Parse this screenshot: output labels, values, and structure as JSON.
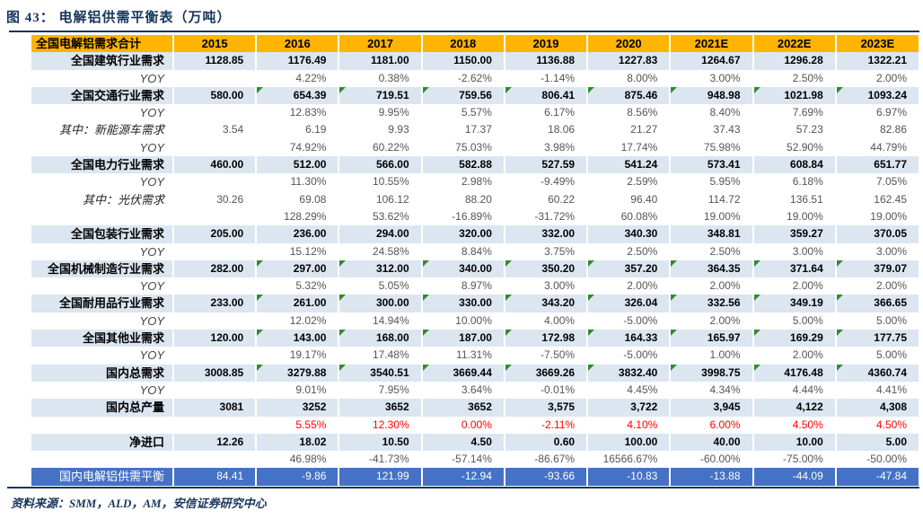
{
  "figure": {
    "title": "图 43：  电解铝供需平衡表（万吨）",
    "source_note": "资料来源：SMM，ALD，AM，安信证券研究中心"
  },
  "colors": {
    "header_bg": "#FFB400",
    "main_row_bg": "#DCE6F1",
    "balance_row_bg": "#4472C4",
    "accent_navy": "#16365C",
    "negative_red": "#FF0000",
    "flag_triangle_green": "#2E8B2E",
    "muted_text": "#555555"
  },
  "table": {
    "header": {
      "label": "全国电解铝需求合计",
      "years": [
        "2015",
        "2016",
        "2017",
        "2018",
        "2019",
        "2020",
        "2021E",
        "2022E",
        "2023E"
      ]
    },
    "rows": [
      {
        "label": "全国建筑行业需求",
        "type": "main",
        "tri": false,
        "values": [
          "1128.85",
          "1176.49",
          "1181.00",
          "1150.00",
          "1136.88",
          "1227.83",
          "1264.67",
          "1296.28",
          "1322.21"
        ]
      },
      {
        "label": "YOY",
        "type": "yoy",
        "values": [
          "",
          "4.22%",
          "0.38%",
          "-2.62%",
          "-1.14%",
          "8.00%",
          "3.00%",
          "2.50%",
          "2.00%"
        ]
      },
      {
        "label": "全国交通行业需求",
        "type": "main",
        "tri": true,
        "values": [
          "580.00",
          "654.39",
          "719.51",
          "759.56",
          "806.41",
          "875.46",
          "948.98",
          "1021.98",
          "1093.24"
        ]
      },
      {
        "label": "YOY",
        "type": "yoy",
        "values": [
          "",
          "12.83%",
          "9.95%",
          "5.57%",
          "6.17%",
          "8.56%",
          "8.40%",
          "7.69%",
          "6.97%"
        ]
      },
      {
        "label": "其中：新能源车需求",
        "type": "sub",
        "values": [
          "3.54",
          "6.19",
          "9.93",
          "17.37",
          "18.06",
          "21.27",
          "37.43",
          "57.23",
          "82.86"
        ]
      },
      {
        "label": "YOY",
        "type": "yoy",
        "values": [
          "",
          "74.92%",
          "60.22%",
          "75.03%",
          "3.98%",
          "17.74%",
          "75.98%",
          "52.90%",
          "44.79%"
        ]
      },
      {
        "label": "全国电力行业需求",
        "type": "main",
        "tri": false,
        "values": [
          "460.00",
          "512.00",
          "566.00",
          "582.88",
          "527.59",
          "541.24",
          "573.41",
          "608.84",
          "651.77"
        ]
      },
      {
        "label": "YOY",
        "type": "yoy",
        "values": [
          "",
          "11.30%",
          "10.55%",
          "2.98%",
          "-9.49%",
          "2.59%",
          "5.95%",
          "6.18%",
          "7.05%"
        ]
      },
      {
        "label": "其中：光伏需求",
        "type": "sub",
        "values": [
          "30.26",
          "69.08",
          "106.12",
          "88.20",
          "60.22",
          "96.40",
          "114.72",
          "136.51",
          "162.45"
        ]
      },
      {
        "label": "",
        "type": "yoy",
        "values": [
          "",
          "128.29%",
          "53.62%",
          "-16.89%",
          "-31.72%",
          "60.08%",
          "19.00%",
          "19.00%",
          "19.00%"
        ]
      },
      {
        "label": "全国包装行业需求",
        "type": "main",
        "tri": false,
        "values": [
          "205.00",
          "236.00",
          "294.00",
          "320.00",
          "332.00",
          "340.30",
          "348.81",
          "359.27",
          "370.05"
        ]
      },
      {
        "label": "YOY",
        "type": "yoy",
        "values": [
          "",
          "15.12%",
          "24.58%",
          "8.84%",
          "3.75%",
          "2.50%",
          "2.50%",
          "3.00%",
          "3.00%"
        ]
      },
      {
        "label": "全国机械制造行业需求",
        "type": "main",
        "tri": true,
        "values": [
          "282.00",
          "297.00",
          "312.00",
          "340.00",
          "350.20",
          "357.20",
          "364.35",
          "371.64",
          "379.07"
        ]
      },
      {
        "label": "YOY",
        "type": "yoy",
        "values": [
          "",
          "5.32%",
          "5.05%",
          "8.97%",
          "3.00%",
          "2.00%",
          "2.00%",
          "2.00%",
          "2.00%"
        ]
      },
      {
        "label": "全国耐用品行业需求",
        "type": "main",
        "tri": true,
        "values": [
          "233.00",
          "261.00",
          "300.00",
          "330.00",
          "343.20",
          "326.04",
          "332.56",
          "349.19",
          "366.65"
        ]
      },
      {
        "label": "YOY",
        "type": "yoy",
        "values": [
          "",
          "12.02%",
          "14.94%",
          "10.00%",
          "4.00%",
          "-5.00%",
          "2.00%",
          "5.00%",
          "5.00%"
        ]
      },
      {
        "label": "全国其他业需求",
        "type": "main",
        "tri": true,
        "values": [
          "120.00",
          "143.00",
          "168.00",
          "187.00",
          "172.98",
          "164.33",
          "165.97",
          "169.29",
          "177.75"
        ]
      },
      {
        "label": "YOY",
        "type": "yoy",
        "values": [
          "",
          "19.17%",
          "17.48%",
          "11.31%",
          "-7.50%",
          "-5.00%",
          "1.00%",
          "2.00%",
          "5.00%"
        ]
      },
      {
        "label": "国内总需求",
        "type": "main",
        "tri": true,
        "values": [
          "3008.85",
          "3279.88",
          "3540.51",
          "3669.44",
          "3669.26",
          "3832.40",
          "3998.75",
          "4176.48",
          "4360.74"
        ]
      },
      {
        "label": "YOY",
        "type": "yoy",
        "values": [
          "",
          "9.01%",
          "7.95%",
          "3.64%",
          "-0.01%",
          "4.45%",
          "4.34%",
          "4.44%",
          "4.41%"
        ]
      },
      {
        "label": "国内总产量",
        "type": "main",
        "tri": false,
        "values": [
          "3081",
          "3252",
          "3652",
          "3652",
          "3,575",
          "3,722",
          "3,945",
          "4,122",
          "4,308"
        ]
      },
      {
        "label": "",
        "type": "red",
        "values": [
          "",
          "5.55%",
          "12.30%",
          "0.00%",
          "-2.11%",
          "4.10%",
          "6.00%",
          "4.50%",
          "4.50%"
        ]
      },
      {
        "label": "净进口",
        "type": "main",
        "tri": false,
        "values": [
          "12.26",
          "18.02",
          "10.50",
          "4.50",
          "0.60",
          "100.00",
          "40.00",
          "10.00",
          "5.00"
        ]
      },
      {
        "label": "",
        "type": "yoy",
        "values": [
          "",
          "46.98%",
          "-41.73%",
          "-57.14%",
          "-86.67%",
          "16566.67%",
          "-60.00%",
          "-75.00%",
          "-50.00%"
        ]
      },
      {
        "label": "国内电解铝供需平衡",
        "type": "balance",
        "values": [
          "84.41",
          "-9.86",
          "121.99",
          "-12.94",
          "-93.66",
          "-10.83",
          "-13.88",
          "-44.09",
          "-47.84"
        ]
      }
    ]
  }
}
